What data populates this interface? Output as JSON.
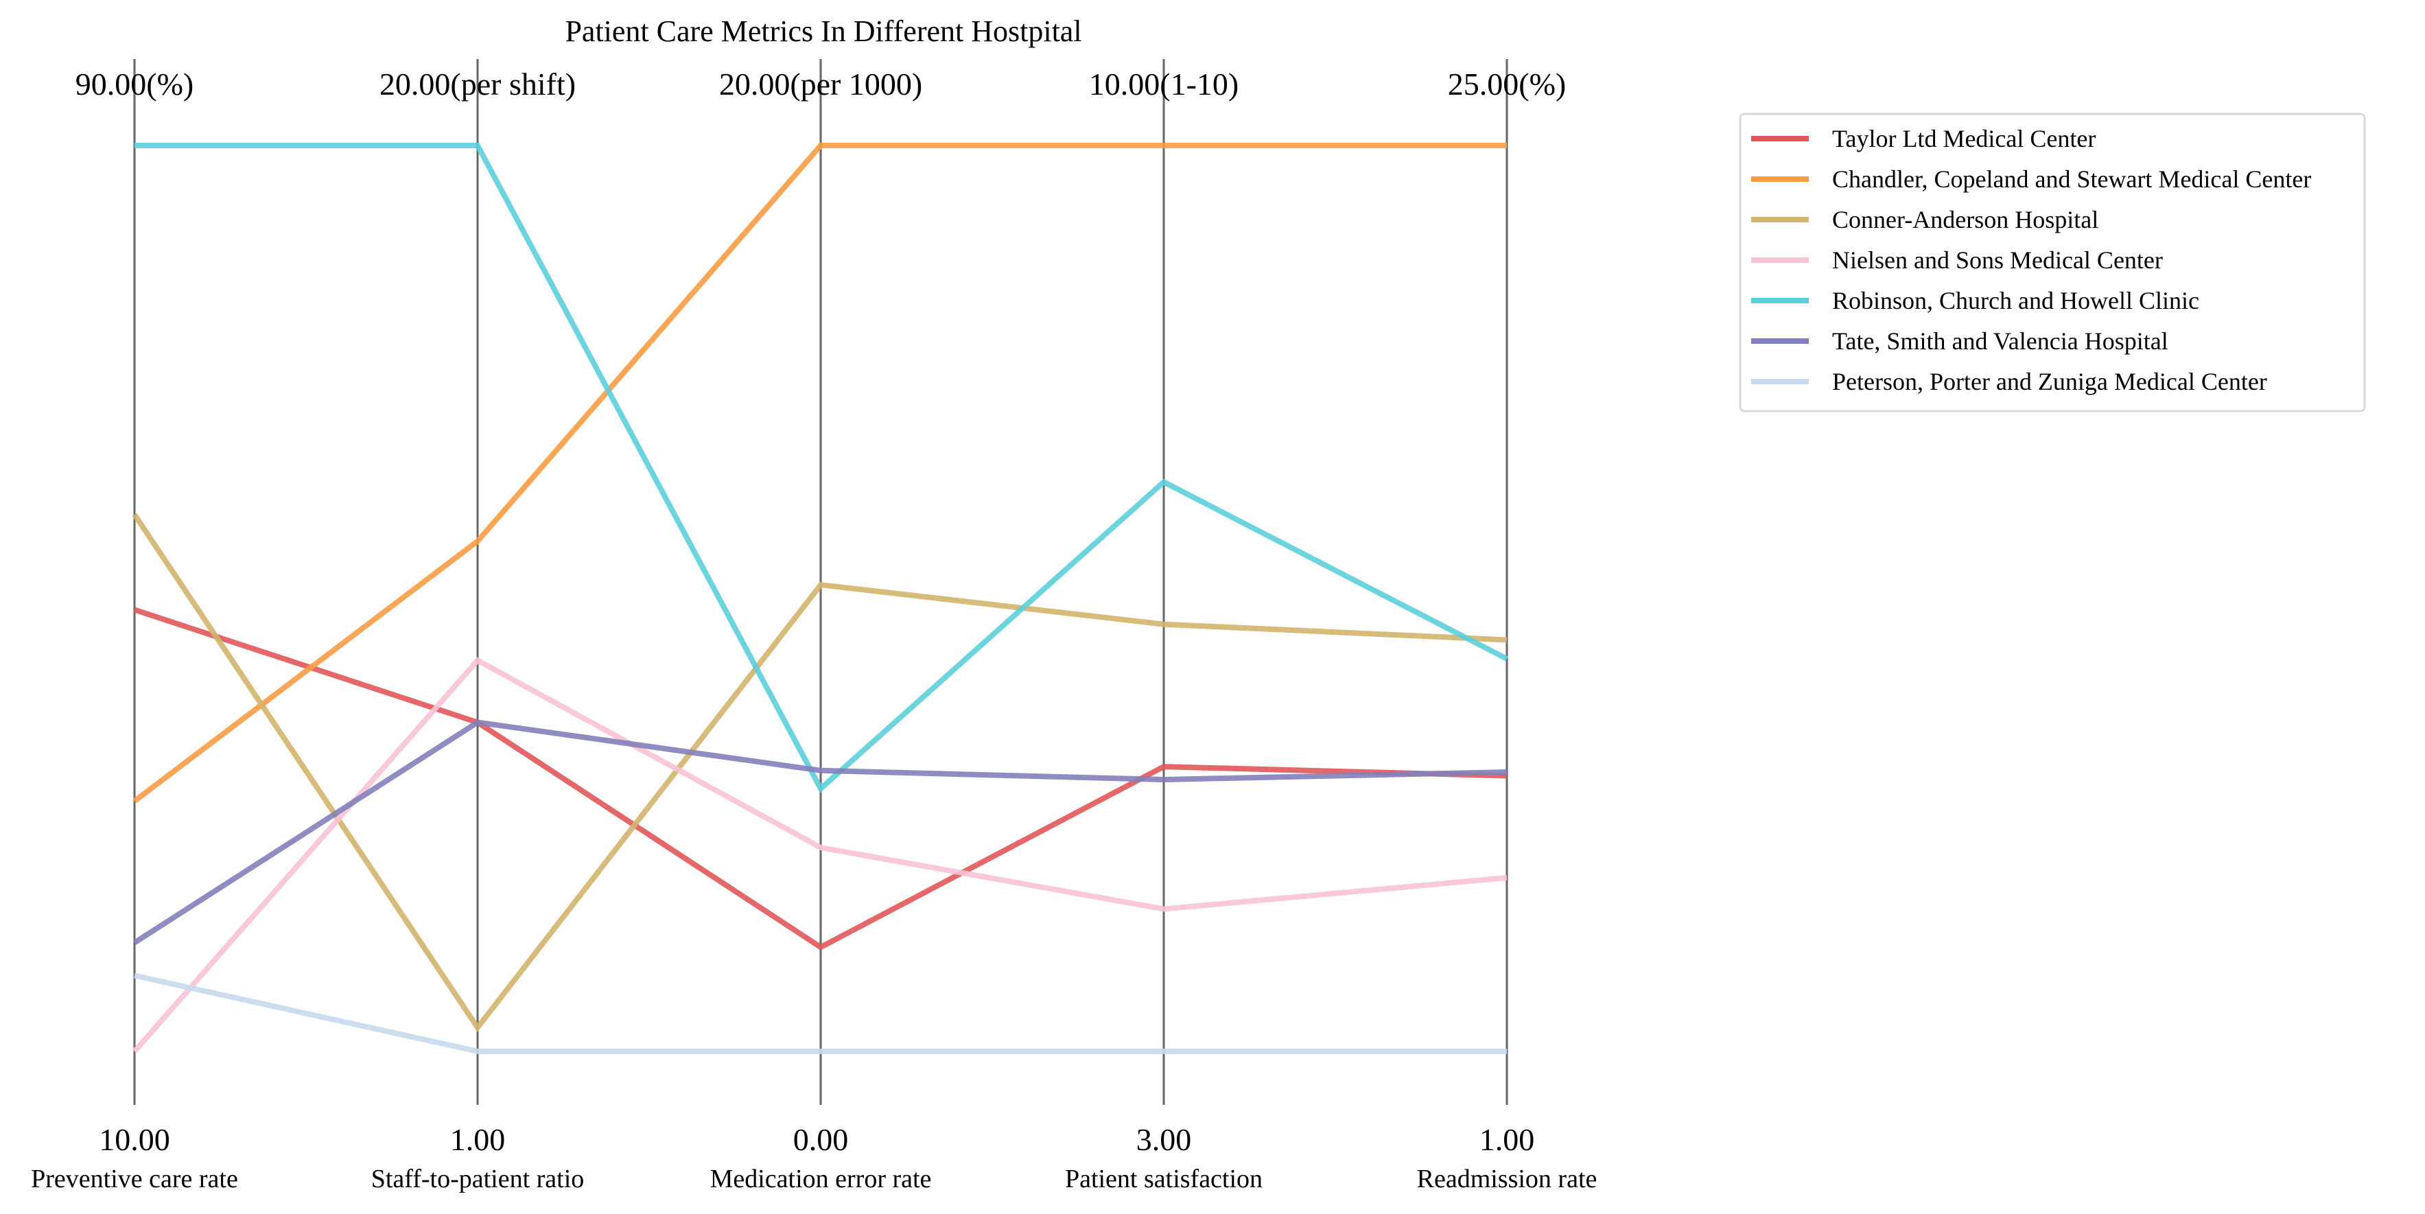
{
  "chart_data": {
    "type": "line",
    "subtype": "parallel-coordinates",
    "title": "Patient Care Metrics In Different Hostpital",
    "axes": [
      {
        "label": "Preventive care rate",
        "min": 10.0,
        "max": 90.0,
        "min_label": "10.00",
        "max_label": "90.00(%)"
      },
      {
        "label": "Staff-to-patient ratio",
        "min": 1.0,
        "max": 20.0,
        "min_label": "1.00",
        "max_label": "20.00(per shift)"
      },
      {
        "label": "Medication error rate",
        "min": 0.0,
        "max": 20.0,
        "min_label": "0.00",
        "max_label": "20.00(per 1000)"
      },
      {
        "label": "Patient satisfaction",
        "min": 3.0,
        "max": 10.0,
        "min_label": "3.00",
        "max_label": "10.00(1-10)"
      },
      {
        "label": "Readmission rate",
        "min": 1.0,
        "max": 25.0,
        "min_label": "1.00",
        "max_label": "25.00(%)"
      }
    ],
    "series": [
      {
        "name": "Taylor Ltd  Medical Center",
        "color": "#e15759",
        "values": [
          49.0,
          7.9,
          2.3,
          5.2,
          8.3
        ]
      },
      {
        "name": "Chandler, Copeland and Stewart  Medical Center",
        "color": "#f89c45",
        "values": [
          32.1,
          11.7,
          20.0,
          10.0,
          25.0
        ]
      },
      {
        "name": "Conner-Anderson  Hospital",
        "color": "#d3b46d",
        "values": [
          57.4,
          1.5,
          10.3,
          6.3,
          11.9
        ]
      },
      {
        "name": "Nielsen and Sons  Medical Center",
        "color": "#f8c2d6",
        "values": [
          10.0,
          9.2,
          4.5,
          4.1,
          5.6
        ]
      },
      {
        "name": "Robinson, Church and Howell  Clinic",
        "color": "#5ccfdb",
        "values": [
          90.0,
          20.0,
          5.8,
          7.4,
          11.4
        ]
      },
      {
        "name": "Tate, Smith and Valencia  Hospital",
        "color": "#8280ba",
        "values": [
          19.6,
          7.9,
          6.2,
          5.1,
          8.4
        ]
      },
      {
        "name": "Peterson, Porter and Zuniga  Medical Center",
        "color": "#c6d9ee",
        "values": [
          16.7,
          1.0,
          0.0,
          3.0,
          1.0
        ]
      }
    ],
    "legend_position": "right",
    "grid": false
  }
}
